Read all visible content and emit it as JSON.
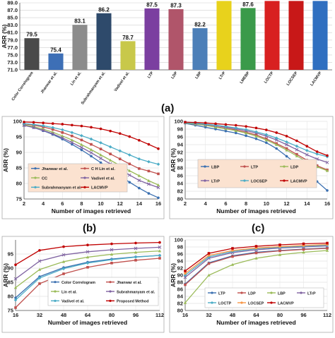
{
  "panel_labels": {
    "a": "(a)",
    "b": "(b)",
    "c": "(c)"
  },
  "chart_data": [
    {
      "id": "a",
      "type": "bar",
      "ylabel": "ARR (%)",
      "ylim": [
        71.0,
        89.0
      ],
      "yticks": [
        "71.0",
        "73.0",
        "75.0",
        "77.0",
        "79.0",
        "81.0",
        "83.0",
        "85.0",
        "87.0",
        "89.0"
      ],
      "grid": true,
      "categories": [
        "Color Correlogram",
        "Jhanwar et al.",
        "Lin et al.",
        "Subrahmanyam et al.",
        "Vadivel et al.",
        "LTP",
        "LDP",
        "LBP",
        "LTrP",
        "LMEBP",
        "LOCTP",
        "LOCSEP",
        "LACMVP"
      ],
      "values": [
        79.5,
        75.4,
        83.1,
        86.2,
        78.7,
        87.5,
        87.3,
        82.2,
        89.5,
        87.6,
        89.5,
        89.5,
        89.5
      ],
      "value_labels": [
        "79.5",
        "75.4",
        "83.1",
        "86.2",
        "78.7",
        "87.5",
        "87.3",
        "82.2",
        "",
        "87.6",
        "",
        "",
        ""
      ],
      "colors": [
        "#4a4a4a",
        "#3d6fb6",
        "#8c8c8c",
        "#2e4a6b",
        "#c8c84a",
        "#7b3fa0",
        "#b0556a",
        "#4c7fb8",
        "#e8d21c",
        "#3a9a4a",
        "#d82020",
        "#c81818",
        "#2f6fc0"
      ]
    },
    {
      "id": "b1",
      "type": "line",
      "xlabel": "Number of images retrieved",
      "ylabel": "ARR (%)",
      "x": [
        2,
        3,
        4,
        5,
        6,
        7,
        8,
        9,
        10,
        11,
        12,
        13,
        14,
        15,
        16
      ],
      "xticks": [
        "2",
        "4",
        "6",
        "8",
        "10",
        "12",
        "14",
        "16"
      ],
      "ylim": [
        75,
        100
      ],
      "yticks": [
        "75",
        "80",
        "85",
        "90",
        "95",
        "100"
      ],
      "legend": "bottom",
      "series": [
        {
          "name": "Jhanwar et al.",
          "color": "#3a6fb0",
          "values": [
            98.8,
            98.0,
            97.0,
            95.8,
            94.3,
            92.6,
            90.8,
            88.8,
            86.7,
            84.5,
            82.4,
            80.4,
            78.5,
            76.8,
            75.4
          ]
        },
        {
          "name": "C H Lin et al.",
          "color": "#c0504d",
          "values": [
            99.2,
            98.8,
            98.2,
            97.4,
            96.4,
            95.3,
            94.0,
            92.6,
            91.1,
            89.5,
            87.9,
            86.3,
            84.8,
            84.0,
            83.1
          ]
        },
        {
          "name": "CC",
          "color": "#9bbb59",
          "values": [
            98.9,
            98.3,
            97.5,
            96.5,
            95.3,
            94.0,
            92.5,
            90.9,
            89.2,
            87.5,
            85.8,
            84.1,
            82.5,
            80.9,
            79.5
          ]
        },
        {
          "name": "Vadivel et al.",
          "color": "#8064a2",
          "values": [
            98.7,
            98.0,
            97.1,
            96.0,
            94.7,
            93.2,
            91.6,
            89.9,
            88.1,
            86.3,
            84.5,
            82.7,
            81.0,
            79.8,
            78.7
          ]
        },
        {
          "name": "Subrahmanyam et al.",
          "color": "#4bacc6",
          "values": [
            99.3,
            99.0,
            98.6,
            98.0,
            97.3,
            96.4,
            95.4,
            94.3,
            93.1,
            91.8,
            90.5,
            89.2,
            87.9,
            87.0,
            86.2
          ]
        },
        {
          "name": "LACMVP",
          "color": "#c00000",
          "values": [
            99.8,
            99.7,
            99.5,
            99.3,
            99.1,
            98.8,
            98.5,
            98.1,
            97.6,
            96.9,
            96.1,
            95.1,
            93.9,
            92.6,
            91.2
          ]
        }
      ]
    },
    {
      "id": "b2",
      "type": "line",
      "xlabel": "Number of images retrieved",
      "ylabel": "ARR (%)",
      "x": [
        2,
        3,
        4,
        5,
        6,
        7,
        8,
        9,
        10,
        11,
        12,
        13,
        14,
        15,
        16
      ],
      "xticks": [
        "2",
        "4",
        "6",
        "8",
        "10",
        "12",
        "14",
        "16"
      ],
      "ylim": [
        80,
        100
      ],
      "yticks": [
        "80",
        "82",
        "84",
        "86",
        "88",
        "90",
        "92",
        "94",
        "96",
        "98",
        "100"
      ],
      "legend": "bottom",
      "series": [
        {
          "name": "LBP",
          "color": "#3a6fb0",
          "values": [
            99.5,
            99.0,
            98.5,
            98.0,
            97.5,
            97.0,
            96.3,
            95.5,
            94.5,
            93.0,
            91.0,
            89.0,
            86.8,
            84.5,
            82.2
          ]
        },
        {
          "name": "LTP",
          "color": "#c0504d",
          "values": [
            99.6,
            99.3,
            99.0,
            98.6,
            98.2,
            97.8,
            97.2,
            96.5,
            95.5,
            94.3,
            93.0,
            91.5,
            90.0,
            88.6,
            87.5
          ]
        },
        {
          "name": "LDP",
          "color": "#9bbb59",
          "values": [
            99.6,
            99.3,
            99.0,
            98.5,
            98.1,
            97.6,
            97.0,
            96.2,
            95.2,
            94.0,
            92.6,
            91.1,
            89.6,
            88.3,
            87.3
          ]
        },
        {
          "name": "LTrP",
          "color": "#8064a2",
          "values": [
            99.7,
            99.5,
            99.2,
            98.9,
            98.5,
            98.1,
            97.6,
            97.0,
            96.2,
            95.2,
            94.0,
            92.7,
            91.4,
            90.3,
            89.4
          ]
        },
        {
          "name": "LOCSEP",
          "color": "#4bacc6",
          "values": [
            99.7,
            99.5,
            99.3,
            99.0,
            98.7,
            98.3,
            97.9,
            97.3,
            96.6,
            95.7,
            94.7,
            93.6,
            92.5,
            91.6,
            90.9
          ]
        },
        {
          "name": "LACMVP",
          "color": "#c00000",
          "values": [
            99.8,
            99.7,
            99.6,
            99.4,
            99.2,
            99.0,
            98.7,
            98.3,
            97.8,
            97.1,
            96.2,
            95.0,
            93.6,
            92.2,
            91.2
          ]
        }
      ]
    },
    {
      "id": "c1",
      "type": "line",
      "xlabel": "Number of images retrieved",
      "ylabel": "ARR (%)",
      "x": [
        16,
        32,
        48,
        64,
        80,
        96,
        112
      ],
      "xticks": [
        "16",
        "32",
        "48",
        "64",
        "80",
        "96",
        "112"
      ],
      "ylim": [
        75,
        100
      ],
      "yticks": [
        "75",
        "80",
        "85",
        "90",
        "95"
      ],
      "legend": "bottom",
      "series": [
        {
          "name": "Color Correlogram",
          "color": "#3a6fb0",
          "values": [
            79.5,
            87.0,
            90.2,
            92.1,
            93.2,
            94.0,
            94.5
          ]
        },
        {
          "name": "Jhanwar et al.",
          "color": "#c0504d",
          "values": [
            76.0,
            84.5,
            88.0,
            90.3,
            91.8,
            92.8,
            93.5
          ]
        },
        {
          "name": "Lin et al.",
          "color": "#9bbb59",
          "values": [
            83.1,
            89.5,
            92.3,
            93.9,
            94.9,
            95.6,
            96.1
          ]
        },
        {
          "name": "Subrahmanyam et al.",
          "color": "#8064a2",
          "values": [
            86.2,
            92.5,
            94.7,
            95.8,
            96.5,
            97.0,
            97.4
          ]
        },
        {
          "name": "Vadivel et al.",
          "color": "#4bacc6",
          "values": [
            78.7,
            86.5,
            89.8,
            91.8,
            93.0,
            93.9,
            94.5
          ]
        },
        {
          "name": "Proposed Method",
          "color": "#c00000",
          "values": [
            91.2,
            96.3,
            97.6,
            98.2,
            98.6,
            98.9,
            99.1
          ]
        }
      ]
    },
    {
      "id": "c2",
      "type": "line",
      "xlabel": "Number of images retrieved",
      "ylabel": "ARR (%)",
      "x": [
        16,
        32,
        48,
        64,
        80,
        96,
        112
      ],
      "xticks": [
        "16",
        "32",
        "48",
        "64",
        "80",
        "96",
        "112"
      ],
      "ylim": [
        80,
        100
      ],
      "yticks": [
        "80",
        "82",
        "84",
        "86",
        "88",
        "90",
        "92",
        "94",
        "96",
        "98",
        "100"
      ],
      "legend": "bottom",
      "series": [
        {
          "name": "LTP",
          "color": "#3a6fb0",
          "values": [
            87.5,
            93.5,
            95.5,
            96.5,
            97.0,
            97.4,
            97.7
          ]
        },
        {
          "name": "LDP",
          "color": "#c0504d",
          "values": [
            87.3,
            93.3,
            95.3,
            96.3,
            96.9,
            97.3,
            97.6
          ]
        },
        {
          "name": "LBP",
          "color": "#9bbb59",
          "values": [
            82.2,
            90.0,
            93.0,
            94.8,
            95.8,
            96.5,
            97.0
          ]
        },
        {
          "name": "LTrP",
          "color": "#8064a2",
          "values": [
            89.4,
            94.8,
            96.4,
            97.2,
            97.7,
            98.0,
            98.3
          ]
        },
        {
          "name": "LOCTP",
          "color": "#4bacc6",
          "values": [
            90.0,
            95.2,
            96.7,
            97.5,
            97.9,
            98.2,
            98.5
          ]
        },
        {
          "name": "LOCSEP",
          "color": "#f79646",
          "values": [
            90.5,
            95.6,
            97.0,
            97.7,
            98.1,
            98.4,
            98.7
          ]
        },
        {
          "name": "LACMVP",
          "color": "#c00000",
          "values": [
            91.2,
            96.2,
            97.6,
            98.2,
            98.6,
            98.9,
            99.1
          ]
        }
      ]
    }
  ]
}
